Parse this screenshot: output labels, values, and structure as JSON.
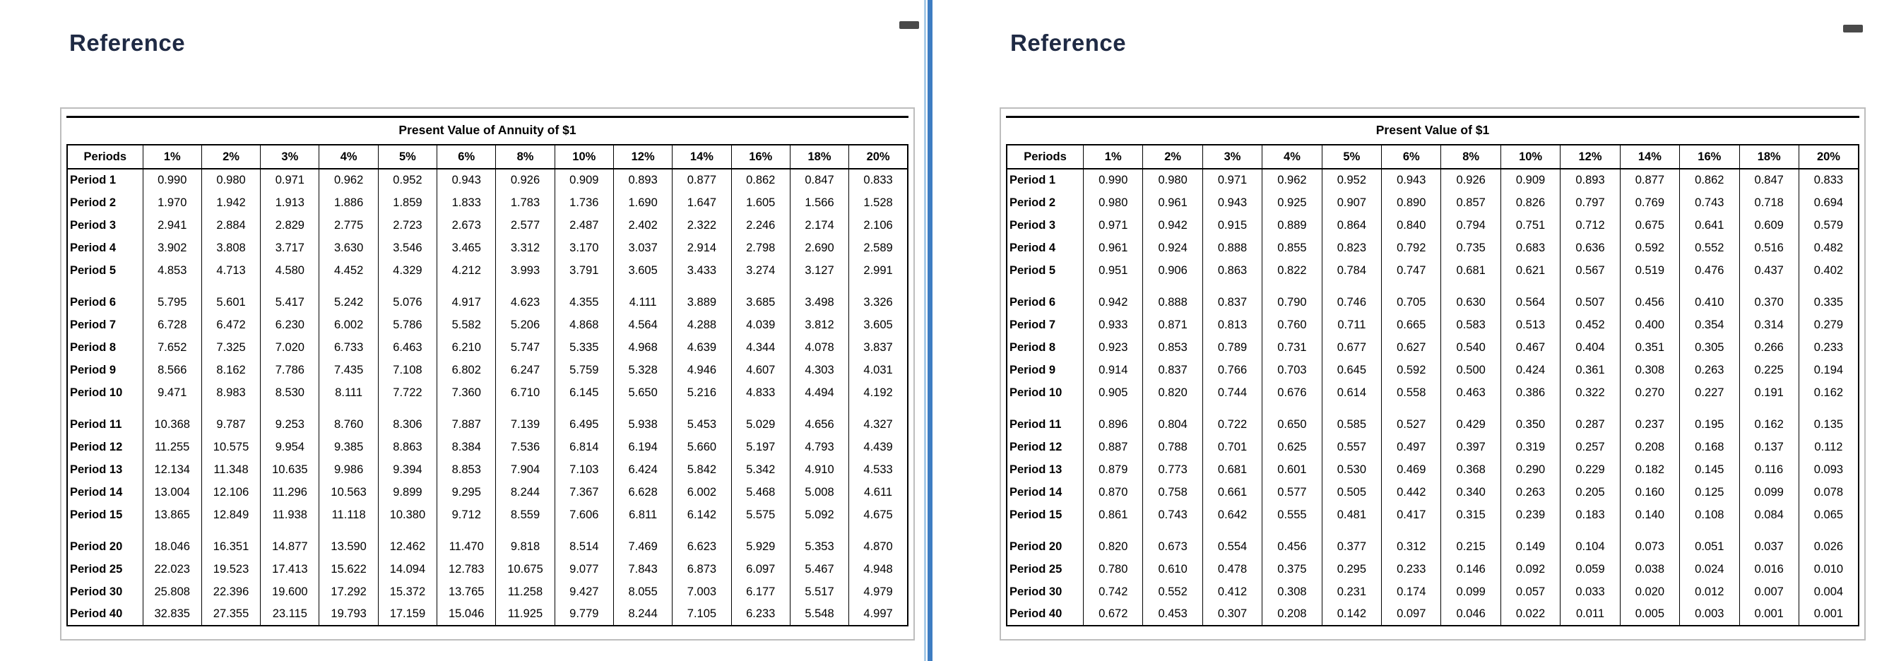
{
  "icons": {
    "minimize": "minimize-icon"
  },
  "divider_colors": {
    "light_blue": "#a9cbe8",
    "dark_blue": "#3e7dc2"
  },
  "title_color": "#1f2a44",
  "panels": [
    {
      "title": "Reference",
      "table": {
        "title": "Present Value of Annuity of $1",
        "columns": [
          "Periods",
          "1%",
          "2%",
          "3%",
          "4%",
          "5%",
          "6%",
          "8%",
          "10%",
          "12%",
          "14%",
          "16%",
          "18%",
          "20%"
        ],
        "groups": [
          [
            [
              "Period 1",
              "0.990",
              "0.980",
              "0.971",
              "0.962",
              "0.952",
              "0.943",
              "0.926",
              "0.909",
              "0.893",
              "0.877",
              "0.862",
              "0.847",
              "0.833"
            ],
            [
              "Period 2",
              "1.970",
              "1.942",
              "1.913",
              "1.886",
              "1.859",
              "1.833",
              "1.783",
              "1.736",
              "1.690",
              "1.647",
              "1.605",
              "1.566",
              "1.528"
            ],
            [
              "Period 3",
              "2.941",
              "2.884",
              "2.829",
              "2.775",
              "2.723",
              "2.673",
              "2.577",
              "2.487",
              "2.402",
              "2.322",
              "2.246",
              "2.174",
              "2.106"
            ],
            [
              "Period 4",
              "3.902",
              "3.808",
              "3.717",
              "3.630",
              "3.546",
              "3.465",
              "3.312",
              "3.170",
              "3.037",
              "2.914",
              "2.798",
              "2.690",
              "2.589"
            ],
            [
              "Period 5",
              "4.853",
              "4.713",
              "4.580",
              "4.452",
              "4.329",
              "4.212",
              "3.993",
              "3.791",
              "3.605",
              "3.433",
              "3.274",
              "3.127",
              "2.991"
            ]
          ],
          [
            [
              "Period 6",
              "5.795",
              "5.601",
              "5.417",
              "5.242",
              "5.076",
              "4.917",
              "4.623",
              "4.355",
              "4.111",
              "3.889",
              "3.685",
              "3.498",
              "3.326"
            ],
            [
              "Period 7",
              "6.728",
              "6.472",
              "6.230",
              "6.002",
              "5.786",
              "5.582",
              "5.206",
              "4.868",
              "4.564",
              "4.288",
              "4.039",
              "3.812",
              "3.605"
            ],
            [
              "Period 8",
              "7.652",
              "7.325",
              "7.020",
              "6.733",
              "6.463",
              "6.210",
              "5.747",
              "5.335",
              "4.968",
              "4.639",
              "4.344",
              "4.078",
              "3.837"
            ],
            [
              "Period 9",
              "8.566",
              "8.162",
              "7.786",
              "7.435",
              "7.108",
              "6.802",
              "6.247",
              "5.759",
              "5.328",
              "4.946",
              "4.607",
              "4.303",
              "4.031"
            ],
            [
              "Period 10",
              "9.471",
              "8.983",
              "8.530",
              "8.111",
              "7.722",
              "7.360",
              "6.710",
              "6.145",
              "5.650",
              "5.216",
              "4.833",
              "4.494",
              "4.192"
            ]
          ],
          [
            [
              "Period 11",
              "10.368",
              "9.787",
              "9.253",
              "8.760",
              "8.306",
              "7.887",
              "7.139",
              "6.495",
              "5.938",
              "5.453",
              "5.029",
              "4.656",
              "4.327"
            ],
            [
              "Period 12",
              "11.255",
              "10.575",
              "9.954",
              "9.385",
              "8.863",
              "8.384",
              "7.536",
              "6.814",
              "6.194",
              "5.660",
              "5.197",
              "4.793",
              "4.439"
            ],
            [
              "Period 13",
              "12.134",
              "11.348",
              "10.635",
              "9.986",
              "9.394",
              "8.853",
              "7.904",
              "7.103",
              "6.424",
              "5.842",
              "5.342",
              "4.910",
              "4.533"
            ],
            [
              "Period 14",
              "13.004",
              "12.106",
              "11.296",
              "10.563",
              "9.899",
              "9.295",
              "8.244",
              "7.367",
              "6.628",
              "6.002",
              "5.468",
              "5.008",
              "4.611"
            ],
            [
              "Period 15",
              "13.865",
              "12.849",
              "11.938",
              "11.118",
              "10.380",
              "9.712",
              "8.559",
              "7.606",
              "6.811",
              "6.142",
              "5.575",
              "5.092",
              "4.675"
            ]
          ],
          [
            [
              "Period 20",
              "18.046",
              "16.351",
              "14.877",
              "13.590",
              "12.462",
              "11.470",
              "9.818",
              "8.514",
              "7.469",
              "6.623",
              "5.929",
              "5.353",
              "4.870"
            ],
            [
              "Period 25",
              "22.023",
              "19.523",
              "17.413",
              "15.622",
              "14.094",
              "12.783",
              "10.675",
              "9.077",
              "7.843",
              "6.873",
              "6.097",
              "5.467",
              "4.948"
            ],
            [
              "Period 30",
              "25.808",
              "22.396",
              "19.600",
              "17.292",
              "15.372",
              "13.765",
              "11.258",
              "9.427",
              "8.055",
              "7.003",
              "6.177",
              "5.517",
              "4.979"
            ],
            [
              "Period 40",
              "32.835",
              "27.355",
              "23.115",
              "19.793",
              "17.159",
              "15.046",
              "11.925",
              "9.779",
              "8.244",
              "7.105",
              "6.233",
              "5.548",
              "4.997"
            ]
          ]
        ]
      }
    },
    {
      "title": "Reference",
      "table": {
        "title": "Present Value of $1",
        "columns": [
          "Periods",
          "1%",
          "2%",
          "3%",
          "4%",
          "5%",
          "6%",
          "8%",
          "10%",
          "12%",
          "14%",
          "16%",
          "18%",
          "20%"
        ],
        "groups": [
          [
            [
              "Period 1",
              "0.990",
              "0.980",
              "0.971",
              "0.962",
              "0.952",
              "0.943",
              "0.926",
              "0.909",
              "0.893",
              "0.877",
              "0.862",
              "0.847",
              "0.833"
            ],
            [
              "Period 2",
              "0.980",
              "0.961",
              "0.943",
              "0.925",
              "0.907",
              "0.890",
              "0.857",
              "0.826",
              "0.797",
              "0.769",
              "0.743",
              "0.718",
              "0.694"
            ],
            [
              "Period 3",
              "0.971",
              "0.942",
              "0.915",
              "0.889",
              "0.864",
              "0.840",
              "0.794",
              "0.751",
              "0.712",
              "0.675",
              "0.641",
              "0.609",
              "0.579"
            ],
            [
              "Period 4",
              "0.961",
              "0.924",
              "0.888",
              "0.855",
              "0.823",
              "0.792",
              "0.735",
              "0.683",
              "0.636",
              "0.592",
              "0.552",
              "0.516",
              "0.482"
            ],
            [
              "Period 5",
              "0.951",
              "0.906",
              "0.863",
              "0.822",
              "0.784",
              "0.747",
              "0.681",
              "0.621",
              "0.567",
              "0.519",
              "0.476",
              "0.437",
              "0.402"
            ]
          ],
          [
            [
              "Period 6",
              "0.942",
              "0.888",
              "0.837",
              "0.790",
              "0.746",
              "0.705",
              "0.630",
              "0.564",
              "0.507",
              "0.456",
              "0.410",
              "0.370",
              "0.335"
            ],
            [
              "Period 7",
              "0.933",
              "0.871",
              "0.813",
              "0.760",
              "0.711",
              "0.665",
              "0.583",
              "0.513",
              "0.452",
              "0.400",
              "0.354",
              "0.314",
              "0.279"
            ],
            [
              "Period 8",
              "0.923",
              "0.853",
              "0.789",
              "0.731",
              "0.677",
              "0.627",
              "0.540",
              "0.467",
              "0.404",
              "0.351",
              "0.305",
              "0.266",
              "0.233"
            ],
            [
              "Period 9",
              "0.914",
              "0.837",
              "0.766",
              "0.703",
              "0.645",
              "0.592",
              "0.500",
              "0.424",
              "0.361",
              "0.308",
              "0.263",
              "0.225",
              "0.194"
            ],
            [
              "Period 10",
              "0.905",
              "0.820",
              "0.744",
              "0.676",
              "0.614",
              "0.558",
              "0.463",
              "0.386",
              "0.322",
              "0.270",
              "0.227",
              "0.191",
              "0.162"
            ]
          ],
          [
            [
              "Period 11",
              "0.896",
              "0.804",
              "0.722",
              "0.650",
              "0.585",
              "0.527",
              "0.429",
              "0.350",
              "0.287",
              "0.237",
              "0.195",
              "0.162",
              "0.135"
            ],
            [
              "Period 12",
              "0.887",
              "0.788",
              "0.701",
              "0.625",
              "0.557",
              "0.497",
              "0.397",
              "0.319",
              "0.257",
              "0.208",
              "0.168",
              "0.137",
              "0.112"
            ],
            [
              "Period 13",
              "0.879",
              "0.773",
              "0.681",
              "0.601",
              "0.530",
              "0.469",
              "0.368",
              "0.290",
              "0.229",
              "0.182",
              "0.145",
              "0.116",
              "0.093"
            ],
            [
              "Period 14",
              "0.870",
              "0.758",
              "0.661",
              "0.577",
              "0.505",
              "0.442",
              "0.340",
              "0.263",
              "0.205",
              "0.160",
              "0.125",
              "0.099",
              "0.078"
            ],
            [
              "Period 15",
              "0.861",
              "0.743",
              "0.642",
              "0.555",
              "0.481",
              "0.417",
              "0.315",
              "0.239",
              "0.183",
              "0.140",
              "0.108",
              "0.084",
              "0.065"
            ]
          ],
          [
            [
              "Period 20",
              "0.820",
              "0.673",
              "0.554",
              "0.456",
              "0.377",
              "0.312",
              "0.215",
              "0.149",
              "0.104",
              "0.073",
              "0.051",
              "0.037",
              "0.026"
            ],
            [
              "Period 25",
              "0.780",
              "0.610",
              "0.478",
              "0.375",
              "0.295",
              "0.233",
              "0.146",
              "0.092",
              "0.059",
              "0.038",
              "0.024",
              "0.016",
              "0.010"
            ],
            [
              "Period 30",
              "0.742",
              "0.552",
              "0.412",
              "0.308",
              "0.231",
              "0.174",
              "0.099",
              "0.057",
              "0.033",
              "0.020",
              "0.012",
              "0.007",
              "0.004"
            ],
            [
              "Period 40",
              "0.672",
              "0.453",
              "0.307",
              "0.208",
              "0.142",
              "0.097",
              "0.046",
              "0.022",
              "0.011",
              "0.005",
              "0.003",
              "0.001",
              "0.001"
            ]
          ]
        ]
      }
    }
  ]
}
